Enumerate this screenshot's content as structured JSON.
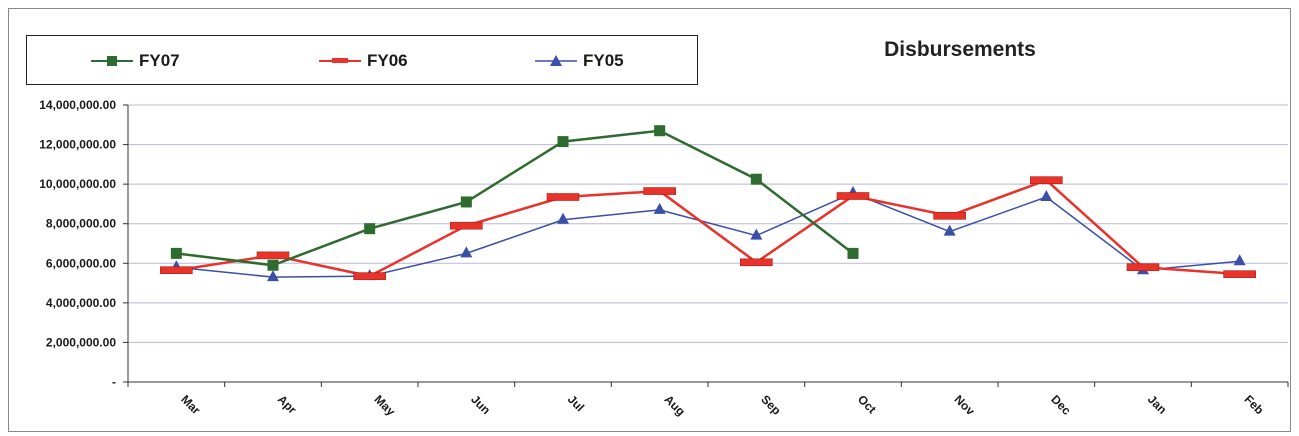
{
  "chart_data": {
    "type": "line",
    "title": "Disbursements",
    "xlabel": "",
    "ylabel": "",
    "categories": [
      "Mar",
      "Apr",
      "May",
      "Jun",
      "Jul",
      "Aug",
      "Sep",
      "Oct",
      "Nov",
      "Dec",
      "Jan",
      "Feb"
    ],
    "ylim": [
      0,
      14000000
    ],
    "yticks": [
      0,
      2000000,
      4000000,
      6000000,
      8000000,
      10000000,
      12000000,
      14000000
    ],
    "ytick_labels": [
      "-",
      "2,000,000.00",
      "4,000,000.00",
      "6,000,000.00",
      "8,000,000.00",
      "10,000,000.00",
      "12,000,000.00",
      "14,000,000.00"
    ],
    "grid": true,
    "legend_position": "top-left",
    "series": [
      {
        "name": "FY07",
        "color": "#2e6b2e",
        "marker": "square",
        "values": [
          6500000,
          5900000,
          7750000,
          9100000,
          12150000,
          12700000,
          10250000,
          6500000,
          null,
          null,
          null,
          null
        ]
      },
      {
        "name": "FY06",
        "color": "#e8322a",
        "marker": "bar",
        "values": [
          5650000,
          6400000,
          5350000,
          7900000,
          9350000,
          9650000,
          6050000,
          9400000,
          8400000,
          10200000,
          5800000,
          5450000
        ]
      },
      {
        "name": "FY05",
        "color": "#3a4fa8",
        "marker": "triangle",
        "values": [
          5800000,
          5300000,
          5350000,
          6500000,
          8200000,
          8700000,
          7400000,
          9550000,
          7600000,
          9350000,
          5650000,
          6100000
        ]
      }
    ]
  }
}
